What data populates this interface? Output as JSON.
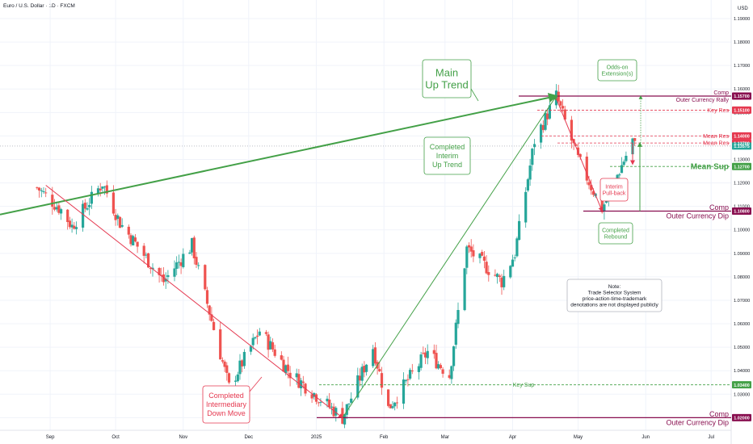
{
  "header": {
    "symbol_title": "Euro / U.S. Dollar · 1D · FXCM"
  },
  "axis": {
    "currency": "USD"
  },
  "colors": {
    "up": "#26a69a",
    "down": "#ef5350",
    "green": "#43a047",
    "red": "#e53950",
    "maroon": "#880e4f",
    "grid": "#f0f3fa",
    "axis_text": "#131722",
    "note_border": "#b2b5be"
  },
  "chart_data": {
    "type": "candlestick",
    "y_axis": {
      "scale": "linear",
      "ylim": [
        1.0136,
        1.1955
      ],
      "ticks": [
        "1.19000",
        "1.18000",
        "1.17000",
        "1.16000",
        "1.15000",
        "1.14000",
        "1.13000",
        "1.12000",
        "1.11000",
        "1.10000",
        "1.09000",
        "1.08000",
        "1.07000",
        "1.06000",
        "1.05000",
        "1.04000",
        "1.03000",
        "1.02000"
      ]
    },
    "x_axis": {
      "labels": [
        {
          "text": "Sep",
          "date": "2024-09-01"
        },
        {
          "text": "Oct",
          "date": "2024-10-01"
        },
        {
          "text": "Nov",
          "date": "2024-11-01"
        },
        {
          "text": "Dec",
          "date": "2024-12-01"
        },
        {
          "text": "2025",
          "date": "2025-01-01"
        },
        {
          "text": "Feb",
          "date": "2025-02-01"
        },
        {
          "text": "Mar",
          "date": "2025-03-01"
        },
        {
          "text": "Apr",
          "date": "2025-04-01"
        },
        {
          "text": "May",
          "date": "2025-05-01"
        },
        {
          "text": "Jun",
          "date": "2025-06-01"
        },
        {
          "text": "Jul",
          "date": "2025-07-01"
        }
      ]
    },
    "price_anchors": [
      {
        "date": "2024-08-26",
        "close": 1.118
      },
      {
        "date": "2024-09-06",
        "close": 1.1085
      },
      {
        "date": "2024-09-11",
        "close": 1.1015
      },
      {
        "date": "2024-09-25",
        "close": 1.12
      },
      {
        "date": "2024-10-03",
        "close": 1.103
      },
      {
        "date": "2024-10-23",
        "close": 1.078
      },
      {
        "date": "2024-11-05",
        "close": 1.0935
      },
      {
        "date": "2024-11-22",
        "close": 1.033
      },
      {
        "date": "2024-12-06",
        "close": 1.057
      },
      {
        "date": "2024-12-20",
        "close": 1.039
      },
      {
        "date": "2025-01-13",
        "close": 1.02
      },
      {
        "date": "2025-01-27",
        "close": 1.05
      },
      {
        "date": "2025-02-03",
        "close": 1.024
      },
      {
        "date": "2025-02-21",
        "close": 1.048
      },
      {
        "date": "2025-03-03",
        "close": 1.038
      },
      {
        "date": "2025-03-11",
        "close": 1.092
      },
      {
        "date": "2025-03-27",
        "close": 1.078
      },
      {
        "date": "2025-04-02",
        "close": 1.09
      },
      {
        "date": "2025-04-11",
        "close": 1.138
      },
      {
        "date": "2025-04-21",
        "close": 1.157
      },
      {
        "date": "2025-05-01",
        "close": 1.13
      },
      {
        "date": "2025-05-12",
        "close": 1.109
      },
      {
        "date": "2025-05-16",
        "close": 1.117
      },
      {
        "date": "2025-05-26",
        "close": 1.138
      },
      {
        "date": "2025-05-27",
        "close": 1.1357
      }
    ],
    "levels": [
      {
        "name": "Outer Currency Rally",
        "label": "Comp",
        "value": 1.157,
        "price_label": "1.15700",
        "style": "solid",
        "color": "maroon"
      },
      {
        "name": "Key Res",
        "value": 1.151,
        "price_label": "1.15100",
        "style": "dashed",
        "color": "red"
      },
      {
        "name": "Mean Res",
        "value": 1.14,
        "price_label": "1.14000",
        "style": "dashed",
        "color": "red"
      },
      {
        "name": "Mean Res",
        "value": 1.137,
        "price_label": "1.13700",
        "style": "dashed",
        "color": "red"
      },
      {
        "name": "Mean Sup",
        "value": 1.127,
        "price_label": "1.12700",
        "style": "dashed",
        "color": "green"
      },
      {
        "name": "Outer Currency Dip",
        "label": "Comp",
        "value": 1.108,
        "price_label": "1.10800",
        "style": "solid",
        "color": "maroon"
      },
      {
        "name": "Key Sup",
        "value": 1.034,
        "price_label": "1.03400",
        "style": "dashed",
        "color": "green"
      },
      {
        "name": "Outer Currency Dip",
        "label": "Comp",
        "value": 1.02,
        "price_label": "1.02000",
        "style": "solid",
        "color": "maroon"
      }
    ],
    "current_price": {
      "value": 1.1357,
      "price_label": "1.13575"
    },
    "annotations": {
      "main_up_trend": "Main\nUp Trend",
      "completed_interim_up_trend": "Completed\nInterim\nUp Trend",
      "completed_intermediary_down_move": "Completed\nIntermediary\nDown Move",
      "odds_on_extension": "Odds-on\nExtension(s)",
      "interim_pull_back": "Interim\nPull-back",
      "completed_rebound": "Completed\nRebound",
      "note": "Note:\nTrade Selector System\nprice-action-time-trademark\ndenotations are not displayed publicly"
    },
    "level_text": {
      "comp": "Comp",
      "outer_currency_rally": "Outer Currency Rally",
      "key_res": "Key Res",
      "mean_res": "Mean Res",
      "mean_sup": "Mean Sup",
      "outer_currency_dip": "Outer Currency Dip",
      "key_sup": "Key Sup"
    }
  }
}
